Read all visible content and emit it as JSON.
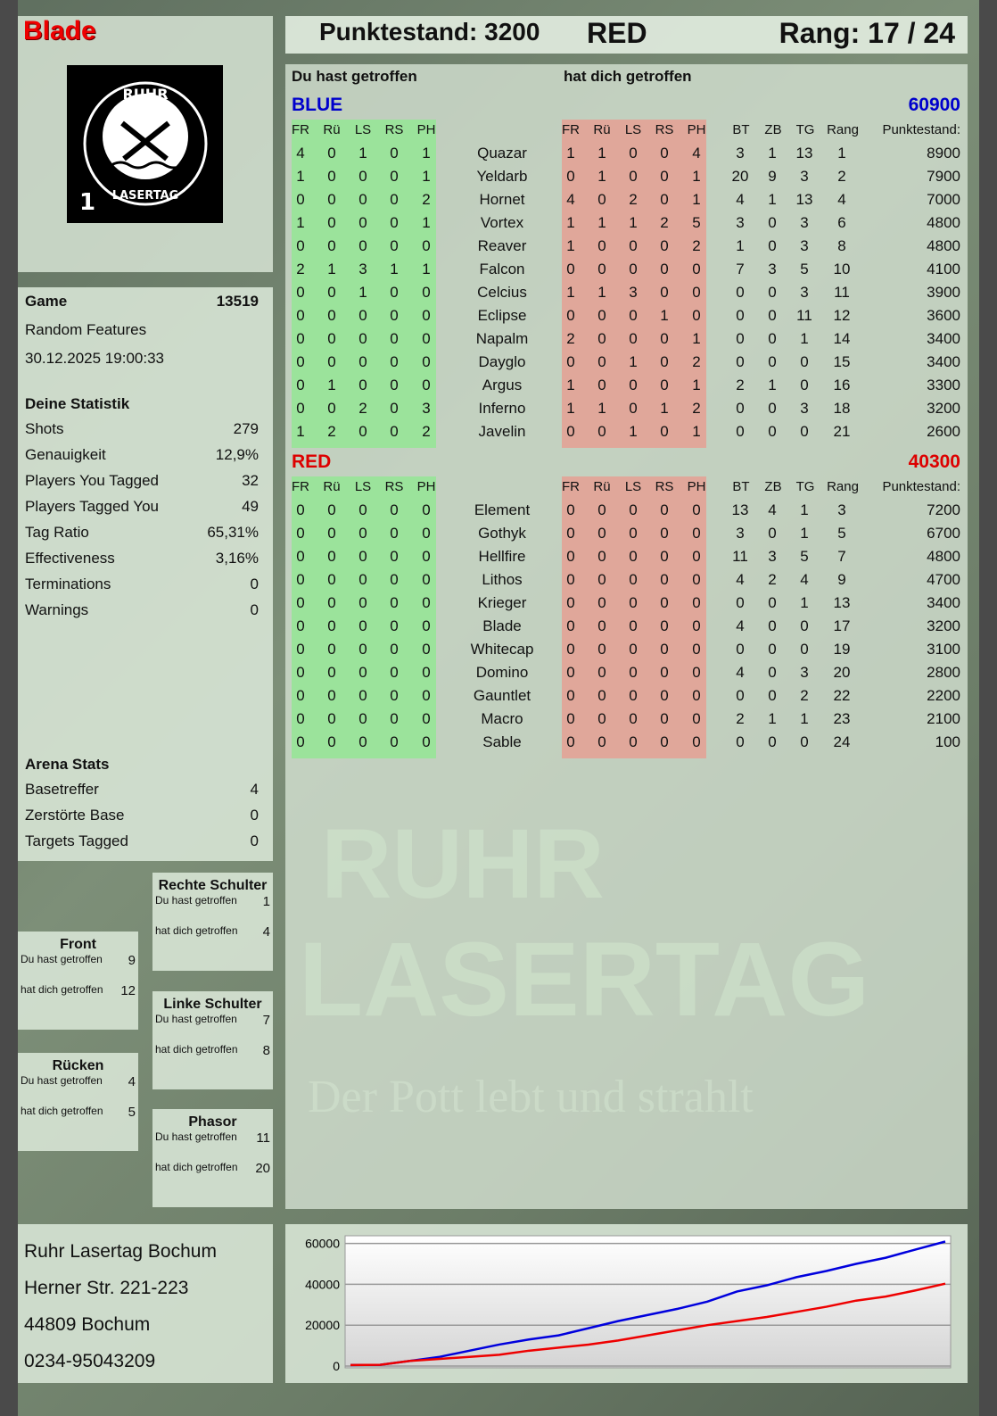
{
  "player": {
    "name": "Blade",
    "logo_text": "RUHR LASERTAG 1"
  },
  "header": {
    "score_label": "Punktestand: 3200",
    "team": "RED",
    "rank_label": "Rang: 17 / 24"
  },
  "colors": {
    "blue": "#0000cc",
    "red": "#dd0000",
    "hit_green": "#9be39b",
    "hit_red": "#e0a79a"
  },
  "table_headers": {
    "you_hit": "Du hast getroffen",
    "hit_you": "hat dich getroffen",
    "hit_cols": [
      "FR",
      "Rü",
      "LS",
      "RS",
      "PH"
    ],
    "stat_cols": [
      "BT",
      "ZB",
      "TG",
      "Rang"
    ],
    "score_col": "Punktestand:"
  },
  "teams": [
    {
      "name": "BLUE",
      "score": "60900",
      "color": "#0000cc",
      "players": [
        {
          "you_hit": [
            4,
            0,
            1,
            0,
            1
          ],
          "name": "Quazar",
          "hit_you": [
            1,
            1,
            0,
            0,
            4
          ],
          "bt": 3,
          "zb": 1,
          "tg": 13,
          "rang": 1,
          "score": 8900
        },
        {
          "you_hit": [
            1,
            0,
            0,
            0,
            1
          ],
          "name": "Yeldarb",
          "hit_you": [
            0,
            1,
            0,
            0,
            1
          ],
          "bt": 20,
          "zb": 9,
          "tg": 3,
          "rang": 2,
          "score": 7900
        },
        {
          "you_hit": [
            0,
            0,
            0,
            0,
            2
          ],
          "name": "Hornet",
          "hit_you": [
            4,
            0,
            2,
            0,
            1
          ],
          "bt": 4,
          "zb": 1,
          "tg": 13,
          "rang": 4,
          "score": 7000
        },
        {
          "you_hit": [
            1,
            0,
            0,
            0,
            1
          ],
          "name": "Vortex",
          "hit_you": [
            1,
            1,
            1,
            2,
            5
          ],
          "bt": 3,
          "zb": 0,
          "tg": 3,
          "rang": 6,
          "score": 4800
        },
        {
          "you_hit": [
            0,
            0,
            0,
            0,
            0
          ],
          "name": "Reaver",
          "hit_you": [
            1,
            0,
            0,
            0,
            2
          ],
          "bt": 1,
          "zb": 0,
          "tg": 3,
          "rang": 8,
          "score": 4800
        },
        {
          "you_hit": [
            2,
            1,
            3,
            1,
            1
          ],
          "name": "Falcon",
          "hit_you": [
            0,
            0,
            0,
            0,
            0
          ],
          "bt": 7,
          "zb": 3,
          "tg": 5,
          "rang": 10,
          "score": 4100
        },
        {
          "you_hit": [
            0,
            0,
            1,
            0,
            0
          ],
          "name": "Celcius",
          "hit_you": [
            1,
            1,
            3,
            0,
            0
          ],
          "bt": 0,
          "zb": 0,
          "tg": 3,
          "rang": 11,
          "score": 3900
        },
        {
          "you_hit": [
            0,
            0,
            0,
            0,
            0
          ],
          "name": "Eclipse",
          "hit_you": [
            0,
            0,
            0,
            1,
            0
          ],
          "bt": 0,
          "zb": 0,
          "tg": 11,
          "rang": 12,
          "score": 3600
        },
        {
          "you_hit": [
            0,
            0,
            0,
            0,
            0
          ],
          "name": "Napalm",
          "hit_you": [
            2,
            0,
            0,
            0,
            1
          ],
          "bt": 0,
          "zb": 0,
          "tg": 1,
          "rang": 14,
          "score": 3400
        },
        {
          "you_hit": [
            0,
            0,
            0,
            0,
            0
          ],
          "name": "Dayglo",
          "hit_you": [
            0,
            0,
            1,
            0,
            2
          ],
          "bt": 0,
          "zb": 0,
          "tg": 0,
          "rang": 15,
          "score": 3400
        },
        {
          "you_hit": [
            0,
            1,
            0,
            0,
            0
          ],
          "name": "Argus",
          "hit_you": [
            1,
            0,
            0,
            0,
            1
          ],
          "bt": 2,
          "zb": 1,
          "tg": 0,
          "rang": 16,
          "score": 3300
        },
        {
          "you_hit": [
            0,
            0,
            2,
            0,
            3
          ],
          "name": "Inferno",
          "hit_you": [
            1,
            1,
            0,
            1,
            2
          ],
          "bt": 0,
          "zb": 0,
          "tg": 3,
          "rang": 18,
          "score": 3200
        },
        {
          "you_hit": [
            1,
            2,
            0,
            0,
            2
          ],
          "name": "Javelin",
          "hit_you": [
            0,
            0,
            1,
            0,
            1
          ],
          "bt": 0,
          "zb": 0,
          "tg": 0,
          "rang": 21,
          "score": 2600
        }
      ]
    },
    {
      "name": "RED",
      "score": "40300",
      "color": "#dd0000",
      "players": [
        {
          "you_hit": [
            0,
            0,
            0,
            0,
            0
          ],
          "name": "Element",
          "hit_you": [
            0,
            0,
            0,
            0,
            0
          ],
          "bt": 13,
          "zb": 4,
          "tg": 1,
          "rang": 3,
          "score": 7200
        },
        {
          "you_hit": [
            0,
            0,
            0,
            0,
            0
          ],
          "name": "Gothyk",
          "hit_you": [
            0,
            0,
            0,
            0,
            0
          ],
          "bt": 3,
          "zb": 0,
          "tg": 1,
          "rang": 5,
          "score": 6700
        },
        {
          "you_hit": [
            0,
            0,
            0,
            0,
            0
          ],
          "name": "Hellfire",
          "hit_you": [
            0,
            0,
            0,
            0,
            0
          ],
          "bt": 11,
          "zb": 3,
          "tg": 5,
          "rang": 7,
          "score": 4800
        },
        {
          "you_hit": [
            0,
            0,
            0,
            0,
            0
          ],
          "name": "Lithos",
          "hit_you": [
            0,
            0,
            0,
            0,
            0
          ],
          "bt": 4,
          "zb": 2,
          "tg": 4,
          "rang": 9,
          "score": 4700
        },
        {
          "you_hit": [
            0,
            0,
            0,
            0,
            0
          ],
          "name": "Krieger",
          "hit_you": [
            0,
            0,
            0,
            0,
            0
          ],
          "bt": 0,
          "zb": 0,
          "tg": 1,
          "rang": 13,
          "score": 3400
        },
        {
          "you_hit": [
            0,
            0,
            0,
            0,
            0
          ],
          "name": "Blade",
          "hit_you": [
            0,
            0,
            0,
            0,
            0
          ],
          "bt": 4,
          "zb": 0,
          "tg": 0,
          "rang": 17,
          "score": 3200
        },
        {
          "you_hit": [
            0,
            0,
            0,
            0,
            0
          ],
          "name": "Whitecap",
          "hit_you": [
            0,
            0,
            0,
            0,
            0
          ],
          "bt": 0,
          "zb": 0,
          "tg": 0,
          "rang": 19,
          "score": 3100
        },
        {
          "you_hit": [
            0,
            0,
            0,
            0,
            0
          ],
          "name": "Domino",
          "hit_you": [
            0,
            0,
            0,
            0,
            0
          ],
          "bt": 4,
          "zb": 0,
          "tg": 3,
          "rang": 20,
          "score": 2800
        },
        {
          "you_hit": [
            0,
            0,
            0,
            0,
            0
          ],
          "name": "Gauntlet",
          "hit_you": [
            0,
            0,
            0,
            0,
            0
          ],
          "bt": 0,
          "zb": 0,
          "tg": 2,
          "rang": 22,
          "score": 2200
        },
        {
          "you_hit": [
            0,
            0,
            0,
            0,
            0
          ],
          "name": "Macro",
          "hit_you": [
            0,
            0,
            0,
            0,
            0
          ],
          "bt": 2,
          "zb": 1,
          "tg": 1,
          "rang": 23,
          "score": 2100
        },
        {
          "you_hit": [
            0,
            0,
            0,
            0,
            0
          ],
          "name": "Sable",
          "hit_you": [
            0,
            0,
            0,
            0,
            0
          ],
          "bt": 0,
          "zb": 0,
          "tg": 0,
          "rang": 24,
          "score": 100
        }
      ]
    }
  ],
  "game": {
    "label": "Game",
    "id": "13519",
    "mode": "Random Features",
    "datetime": "30.12.2025 19:00:33"
  },
  "stats": {
    "title": "Deine Statistik",
    "rows": [
      {
        "label": "Shots",
        "value": "279"
      },
      {
        "label": "Genauigkeit",
        "value": "12,9%"
      },
      {
        "label": "Players You Tagged",
        "value": "32"
      },
      {
        "label": "Players Tagged You",
        "value": "49"
      },
      {
        "label": "Tag Ratio",
        "value": "65,31%"
      },
      {
        "label": "Effectiveness",
        "value": "3,16%"
      },
      {
        "label": "Terminations",
        "value": "0"
      },
      {
        "label": "Warnings",
        "value": "0"
      }
    ]
  },
  "arena": {
    "title": "Arena Stats",
    "rows": [
      {
        "label": "Basetreffer",
        "value": "4"
      },
      {
        "label": "Zerstörte Base",
        "value": "0"
      },
      {
        "label": "Targets Tagged",
        "value": "0"
      }
    ]
  },
  "body_parts": [
    {
      "title": "Rechte Schulter",
      "you_hit_label": "Du hast getroffen",
      "you_hit": "1",
      "hit_you_label": "hat dich getroffen",
      "hit_you": "4"
    },
    {
      "title": "Front",
      "you_hit_label": "Du hast getroffen",
      "you_hit": "9",
      "hit_you_label": "hat dich getroffen",
      "hit_you": "12"
    },
    {
      "title": "Linke Schulter",
      "you_hit_label": "Du hast getroffen",
      "you_hit": "7",
      "hit_you_label": "hat dich getroffen",
      "hit_you": "8"
    },
    {
      "title": "Rücken",
      "you_hit_label": "Du hast getroffen",
      "you_hit": "4",
      "hit_you_label": "hat dich getroffen",
      "hit_you": "5"
    },
    {
      "title": "Phasor",
      "you_hit_label": "Du hast getroffen",
      "you_hit": "11",
      "hit_you_label": "hat dich getroffen",
      "hit_you": "20"
    }
  ],
  "address": [
    "Ruhr Lasertag Bochum",
    "Herner Str. 221-223",
    "44809 Bochum",
    "0234-95043209"
  ],
  "watermark": {
    "line1": "RUHR",
    "line2": "LASERTAG",
    "slogan": "Der Pott lebt und strahlt"
  },
  "chart_data": {
    "type": "line",
    "ylim": [
      0,
      62000
    ],
    "yticks": [
      "0",
      "20000",
      "40000",
      "60000"
    ],
    "grid": true,
    "series": [
      {
        "color": "#0000dd",
        "values": [
          500,
          600,
          2500,
          4500,
          7500,
          10500,
          13000,
          15000,
          18500,
          22000,
          25000,
          28000,
          31500,
          36500,
          39500,
          43500,
          46500,
          50000,
          53000,
          57000,
          60900
        ]
      },
      {
        "color": "#ee0000",
        "values": [
          500,
          600,
          2500,
          3500,
          4500,
          5500,
          7500,
          9000,
          10500,
          12500,
          15000,
          17500,
          20000,
          22000,
          24000,
          26500,
          29000,
          32000,
          34000,
          37000,
          40300
        ]
      }
    ]
  }
}
